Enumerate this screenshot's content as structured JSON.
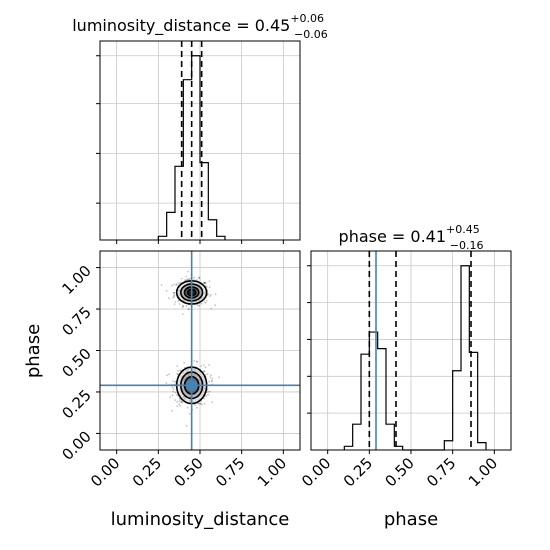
{
  "chart_data": [
    {
      "type": "histogram",
      "panel": "luminosity_distance-marginal",
      "title_param": "luminosity_distance",
      "title_value": "0.45",
      "title_plus": "+0.06",
      "title_minus": "−0.06",
      "xlim": [
        -0.1,
        1.1
      ],
      "bins": [
        {
          "x0": 0.25,
          "x1": 0.3,
          "count": 0.02
        },
        {
          "x0": 0.3,
          "x1": 0.35,
          "count": 0.15
        },
        {
          "x0": 0.35,
          "x1": 0.4,
          "count": 0.4
        },
        {
          "x0": 0.4,
          "x1": 0.45,
          "count": 0.87
        },
        {
          "x0": 0.45,
          "x1": 0.5,
          "count": 1.0
        },
        {
          "x0": 0.5,
          "x1": 0.55,
          "count": 0.42
        },
        {
          "x0": 0.55,
          "x1": 0.6,
          "count": 0.11
        },
        {
          "x0": 0.6,
          "x1": 0.65,
          "count": 0.02
        }
      ],
      "quantiles": [
        0.39,
        0.45,
        0.51
      ],
      "grid": true
    },
    {
      "type": "histogram",
      "panel": "phase-marginal",
      "title_param": "phase",
      "title_value": "0.41",
      "title_plus": "+0.45",
      "title_minus": "−0.16",
      "xlim": [
        -0.1,
        1.1
      ],
      "xticks": [
        "0.00",
        "0.25",
        "0.50",
        "0.75",
        "1.00"
      ],
      "xlabel": "phase",
      "bins": [
        {
          "x0": 0.1,
          "x1": 0.15,
          "count": 0.02
        },
        {
          "x0": 0.15,
          "x1": 0.2,
          "count": 0.14
        },
        {
          "x0": 0.2,
          "x1": 0.25,
          "count": 0.52
        },
        {
          "x0": 0.25,
          "x1": 0.3,
          "count": 0.64
        },
        {
          "x0": 0.3,
          "x1": 0.35,
          "count": 0.55
        },
        {
          "x0": 0.35,
          "x1": 0.4,
          "count": 0.14
        },
        {
          "x0": 0.4,
          "x1": 0.45,
          "count": 0.02
        },
        {
          "x0": 0.7,
          "x1": 0.75,
          "count": 0.05
        },
        {
          "x0": 0.75,
          "x1": 0.8,
          "count": 0.43
        },
        {
          "x0": 0.8,
          "x1": 0.85,
          "count": 1.0
        },
        {
          "x0": 0.85,
          "x1": 0.9,
          "count": 0.53
        },
        {
          "x0": 0.9,
          "x1": 0.95,
          "count": 0.04
        }
      ],
      "quantiles": [
        0.25,
        0.41,
        0.86
      ],
      "truth": 0.29,
      "truth_color": "#4682b4",
      "grid": true
    },
    {
      "type": "scatter",
      "panel": "2d-luminosity_distance-vs-phase",
      "xlim": [
        -0.1,
        1.1
      ],
      "ylim": [
        -0.1,
        1.1
      ],
      "xticks": [
        "0.00",
        "0.25",
        "0.50",
        "0.75",
        "1.00"
      ],
      "yticks": [
        "0.00",
        "0.25",
        "0.50",
        "0.75",
        "1.00"
      ],
      "xlabel": "luminosity_distance",
      "ylabel": "phase",
      "clusters": [
        {
          "x": 0.45,
          "y": 0.85,
          "sx": 0.045,
          "sy": 0.035
        },
        {
          "x": 0.45,
          "y": 0.29,
          "sx": 0.045,
          "sy": 0.055
        }
      ],
      "truth": {
        "x": 0.45,
        "y": 0.29
      },
      "truth_color": "#4682b4",
      "grid": true
    }
  ]
}
